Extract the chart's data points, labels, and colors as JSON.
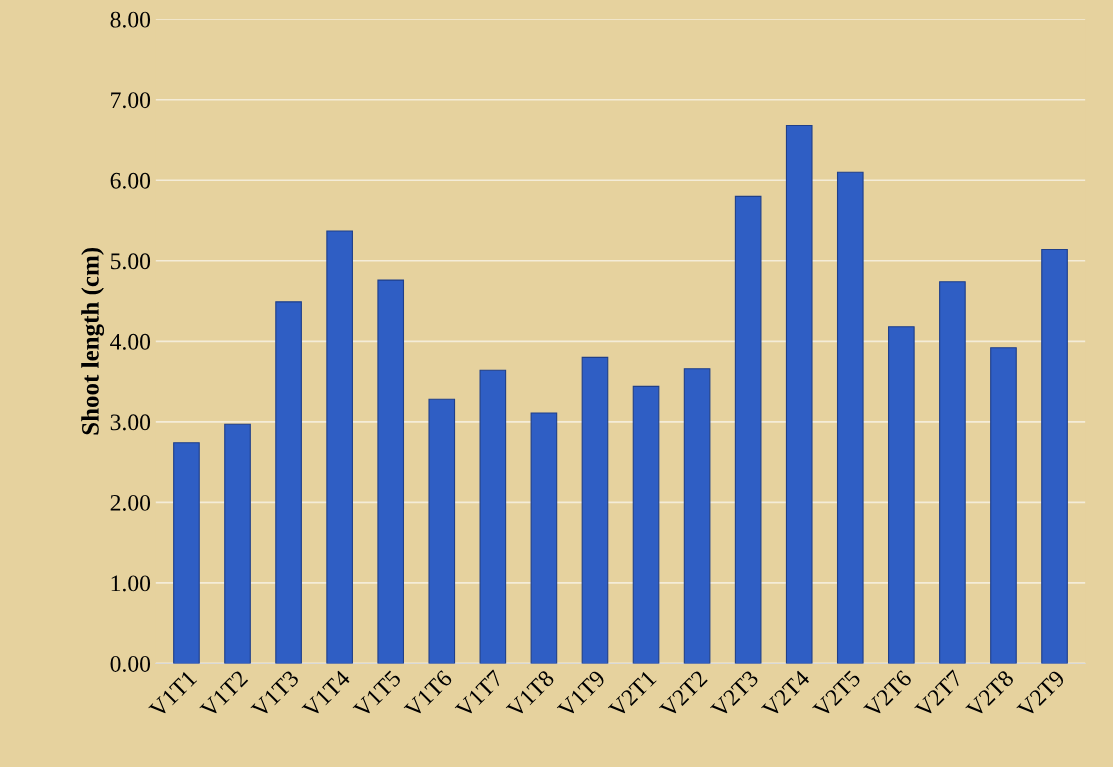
{
  "chart_data": {
    "type": "bar",
    "ylabel": "Shoot length (cm)",
    "categories": [
      "V1T1",
      "V1T2",
      "V1T3",
      "V1T4",
      "V1T5",
      "V1T6",
      "V1T7",
      "V1T8",
      "V1T9",
      "V2T1",
      "V2T2",
      "V2T3",
      "V2T4",
      "V2T5",
      "V2T6",
      "V2T7",
      "V2T8",
      "V2T9"
    ],
    "values": [
      2.74,
      2.97,
      4.49,
      5.37,
      4.76,
      3.28,
      3.64,
      3.11,
      3.8,
      3.44,
      3.66,
      5.8,
      6.68,
      6.1,
      4.18,
      4.74,
      3.92,
      5.14
    ],
    "color": "#2f5ec4",
    "ylim": [
      0,
      8
    ],
    "yticks": [
      {
        "value": 0,
        "label": "0.00"
      },
      {
        "value": 1,
        "label": "1.00"
      },
      {
        "value": 2,
        "label": "2.00"
      },
      {
        "value": 3,
        "label": "3.00"
      },
      {
        "value": 4,
        "label": "4.00"
      },
      {
        "value": 5,
        "label": "5.00"
      },
      {
        "value": 6,
        "label": "6.00"
      },
      {
        "value": 7,
        "label": "7.00"
      },
      {
        "value": 8,
        "label": "8.00"
      }
    ],
    "grid": "y"
  }
}
